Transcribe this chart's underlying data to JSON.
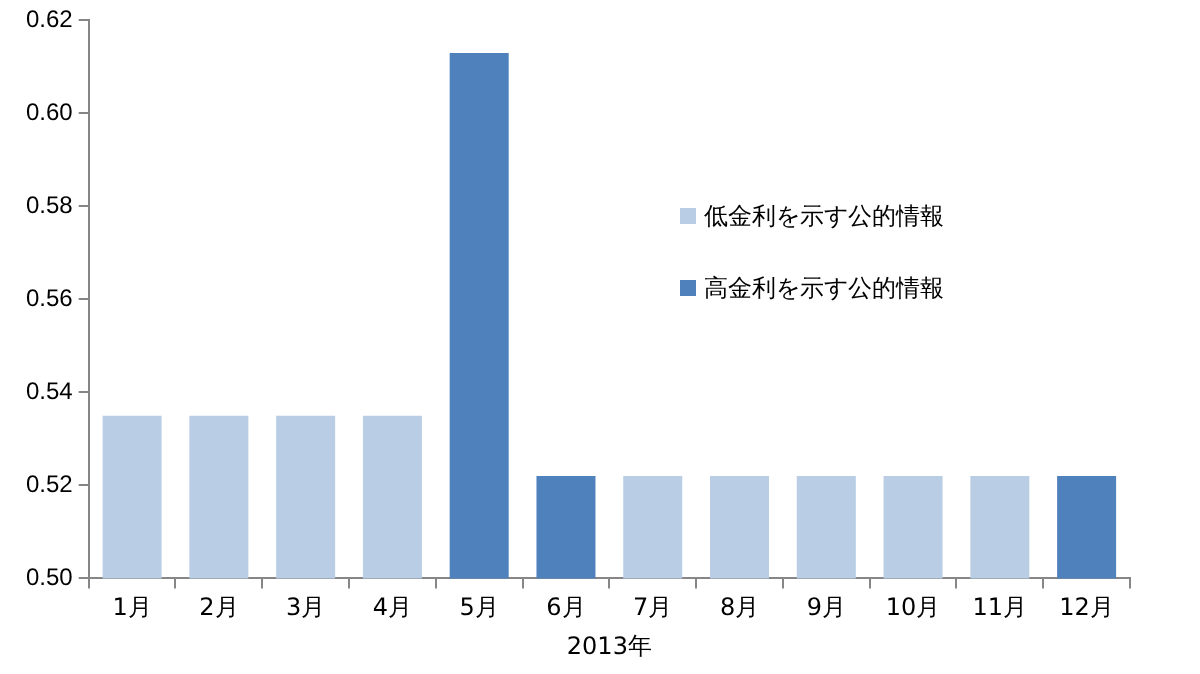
{
  "chart_data": {
    "type": "bar",
    "xlabel": "2013年",
    "categories": [
      "1月",
      "2月",
      "3月",
      "4月",
      "5月",
      "6月",
      "7月",
      "8月",
      "9月",
      "10月",
      "11月",
      "12月"
    ],
    "series": [
      {
        "name": "低金利を示す公的情報",
        "color": "#b9cde5",
        "values": [
          0.535,
          0.535,
          0.535,
          0.535,
          null,
          null,
          0.522,
          0.522,
          0.522,
          0.522,
          0.522,
          null
        ]
      },
      {
        "name": "高金利を示す公的情報",
        "color": "#4f81bd",
        "values": [
          null,
          null,
          null,
          null,
          0.613,
          0.522,
          null,
          null,
          null,
          null,
          null,
          0.522
        ]
      }
    ],
    "ylim": [
      0.5,
      0.62
    ],
    "yticks": [
      {
        "value": 0.5,
        "label": "0.50"
      },
      0.52,
      0.54,
      0.56,
      0.58,
      {
        "value": 0.6,
        "label": "0.60"
      },
      0.62
    ],
    "grid": false,
    "legend": "right"
  }
}
